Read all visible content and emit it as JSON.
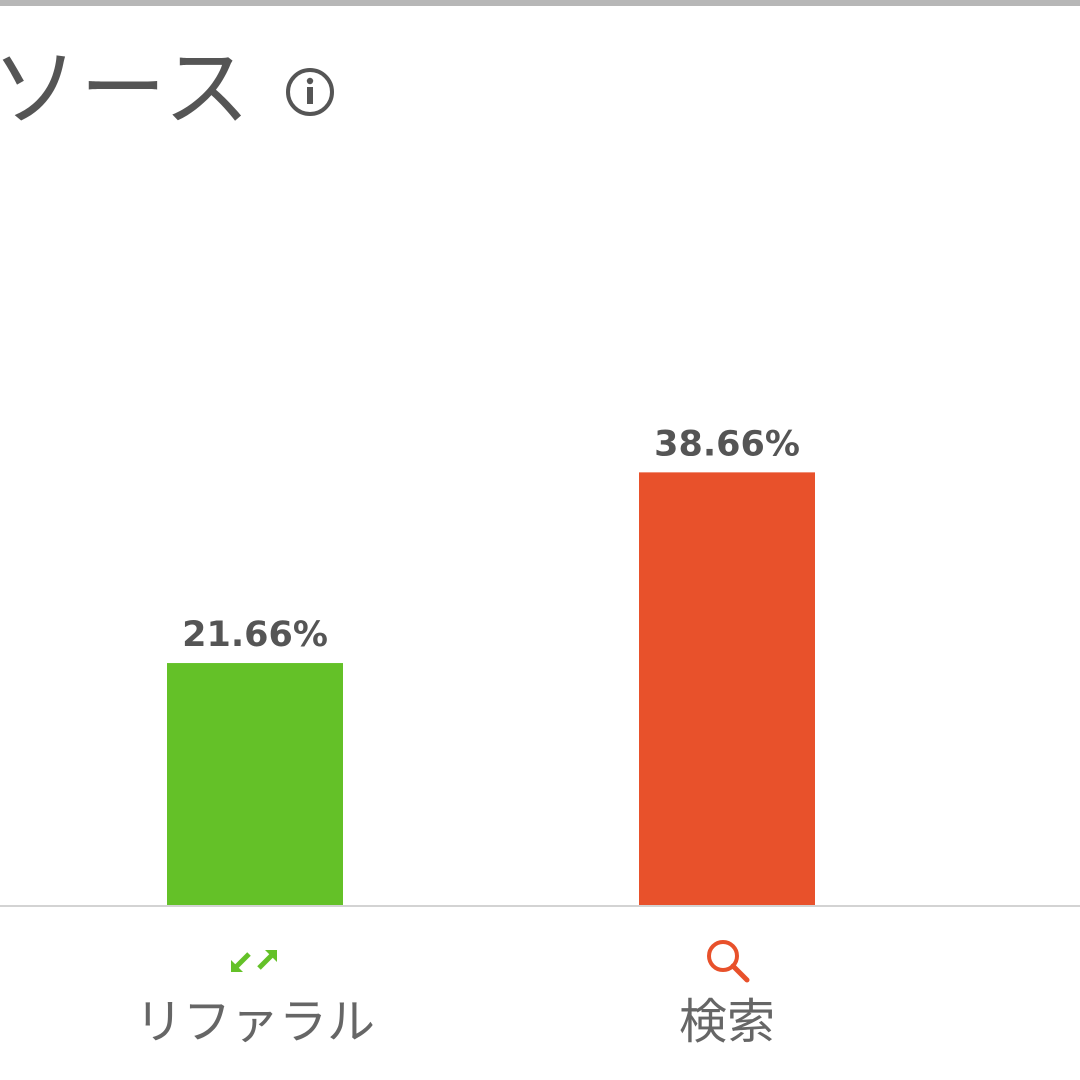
{
  "header": {
    "title": "ソース",
    "info_icon": "info-circle-icon"
  },
  "chart_data": {
    "type": "bar",
    "categories": [
      "リファラル",
      "検索"
    ],
    "values": [
      21.66,
      38.66
    ],
    "value_labels": [
      "21.66%",
      "38.66%"
    ],
    "colors": [
      "#64c128",
      "#e8512b"
    ],
    "icons": [
      "referral-arrows-icon",
      "search-icon"
    ],
    "icon_colors": [
      "#64c128",
      "#e8512b"
    ],
    "ylim": [
      0,
      60
    ],
    "grid": false
  }
}
